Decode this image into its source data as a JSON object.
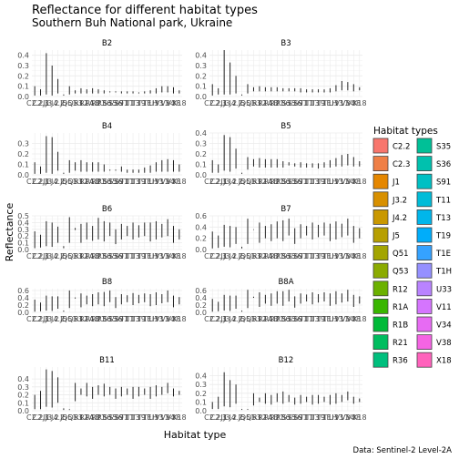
{
  "chart_data": {
    "type": "boxplot",
    "title": "Reflectance for different habitat types",
    "subtitle": "Southern Buh National park, Ukraine",
    "xlabel": "Habitat type",
    "ylabel": "Reflectance",
    "caption": "Data: Sentinel-2 Level-2A",
    "legend": {
      "title": "Habitat types",
      "position": "right",
      "columns": 2
    },
    "grid": true,
    "categories": [
      "C2.2",
      "C2.3",
      "J1",
      "J3.2",
      "J4.2",
      "J5",
      "Q51",
      "Q53",
      "R12",
      "R1A",
      "R1B",
      "R21",
      "R36",
      "S35",
      "S36",
      "S91",
      "T11",
      "T13",
      "T19",
      "T1E",
      "T1H",
      "U33",
      "V11",
      "V34",
      "V38",
      "X18"
    ],
    "colors": [
      "#F8766D",
      "#EF7F46",
      "#E58700",
      "#D89000",
      "#C99800",
      "#B79F00",
      "#A3A500",
      "#8BAB00",
      "#6BB100",
      "#39B600",
      "#00BA38",
      "#00BD5F",
      "#00BF7D",
      "#00C097",
      "#00C1AE",
      "#00C0C4",
      "#00BCD8",
      "#00B6EB",
      "#00ADFA",
      "#35A2FF",
      "#9590FF",
      "#B983FF",
      "#D575FE",
      "#E76BF3",
      "#F564E3",
      "#FF62BC"
    ],
    "panels": [
      {
        "band": "B2",
        "ylim": [
          0,
          0.45
        ],
        "yticks": [
          0.0,
          0.1,
          0.2,
          0.3,
          0.4
        ],
        "ranges": [
          [
            0.01,
            0.1
          ],
          [
            0.01,
            0.07
          ],
          [
            0.02,
            0.42
          ],
          [
            0.01,
            0.3
          ],
          [
            0.03,
            0.17
          ],
          [
            0.01,
            0.02
          ],
          [
            0.02,
            0.1
          ],
          [
            0.03,
            0.06
          ],
          [
            0.03,
            0.08
          ],
          [
            0.03,
            0.07
          ],
          [
            0.03,
            0.08
          ],
          [
            0.03,
            0.07
          ],
          [
            0.03,
            0.06
          ],
          [
            0.04,
            0.05
          ],
          [
            0.04,
            0.05
          ],
          [
            0.03,
            0.05
          ],
          [
            0.03,
            0.05
          ],
          [
            0.03,
            0.05
          ],
          [
            0.03,
            0.04
          ],
          [
            0.03,
            0.05
          ],
          [
            0.03,
            0.06
          ],
          [
            0.03,
            0.08
          ],
          [
            0.04,
            0.1
          ],
          [
            0.04,
            0.1
          ],
          [
            0.03,
            0.09
          ],
          [
            0.03,
            0.06
          ]
        ]
      },
      {
        "band": "B3",
        "ylim": [
          0,
          0.45
        ],
        "yticks": [
          0.0,
          0.1,
          0.2,
          0.3,
          0.4
        ],
        "ranges": [
          [
            0.01,
            0.12
          ],
          [
            0.02,
            0.08
          ],
          [
            0.02,
            0.45
          ],
          [
            0.02,
            0.33
          ],
          [
            0.03,
            0.2
          ],
          [
            0.01,
            0.02
          ],
          [
            0.03,
            0.12
          ],
          [
            0.05,
            0.09
          ],
          [
            0.05,
            0.1
          ],
          [
            0.05,
            0.09
          ],
          [
            0.05,
            0.09
          ],
          [
            0.05,
            0.09
          ],
          [
            0.05,
            0.08
          ],
          [
            0.05,
            0.08
          ],
          [
            0.05,
            0.08
          ],
          [
            0.04,
            0.08
          ],
          [
            0.04,
            0.07
          ],
          [
            0.04,
            0.07
          ],
          [
            0.04,
            0.07
          ],
          [
            0.04,
            0.07
          ],
          [
            0.04,
            0.08
          ],
          [
            0.05,
            0.11
          ],
          [
            0.06,
            0.15
          ],
          [
            0.06,
            0.14
          ],
          [
            0.05,
            0.12
          ],
          [
            0.06,
            0.09
          ]
        ]
      },
      {
        "band": "B4",
        "ylim": [
          0,
          0.4
        ],
        "yticks": [
          0.0,
          0.1,
          0.2,
          0.3
        ],
        "ranges": [
          [
            0.01,
            0.12
          ],
          [
            0.01,
            0.08
          ],
          [
            0.02,
            0.37
          ],
          [
            0.01,
            0.36
          ],
          [
            0.04,
            0.22
          ],
          [
            0.01,
            0.02
          ],
          [
            0.02,
            0.14
          ],
          [
            0.04,
            0.12
          ],
          [
            0.03,
            0.14
          ],
          [
            0.03,
            0.12
          ],
          [
            0.03,
            0.12
          ],
          [
            0.03,
            0.12
          ],
          [
            0.03,
            0.1
          ],
          [
            0.04,
            0.05
          ],
          [
            0.04,
            0.05
          ],
          [
            0.03,
            0.08
          ],
          [
            0.02,
            0.05
          ],
          [
            0.02,
            0.05
          ],
          [
            0.02,
            0.05
          ],
          [
            0.02,
            0.07
          ],
          [
            0.02,
            0.09
          ],
          [
            0.03,
            0.12
          ],
          [
            0.03,
            0.14
          ],
          [
            0.03,
            0.15
          ],
          [
            0.03,
            0.14
          ],
          [
            0.03,
            0.1
          ]
        ]
      },
      {
        "band": "B5",
        "ylim": [
          0,
          0.4
        ],
        "yticks": [
          0.0,
          0.1,
          0.2,
          0.3,
          0.4
        ],
        "ranges": [
          [
            0.02,
            0.14
          ],
          [
            0.02,
            0.1
          ],
          [
            0.04,
            0.38
          ],
          [
            0.03,
            0.36
          ],
          [
            0.06,
            0.25
          ],
          [
            0.01,
            0.02
          ],
          [
            0.05,
            0.17
          ],
          [
            0.08,
            0.15
          ],
          [
            0.07,
            0.16
          ],
          [
            0.07,
            0.15
          ],
          [
            0.07,
            0.15
          ],
          [
            0.07,
            0.15
          ],
          [
            0.07,
            0.13
          ],
          [
            0.09,
            0.12
          ],
          [
            0.08,
            0.11
          ],
          [
            0.07,
            0.12
          ],
          [
            0.07,
            0.11
          ],
          [
            0.07,
            0.11
          ],
          [
            0.06,
            0.11
          ],
          [
            0.07,
            0.12
          ],
          [
            0.07,
            0.14
          ],
          [
            0.08,
            0.16
          ],
          [
            0.08,
            0.19
          ],
          [
            0.09,
            0.2
          ],
          [
            0.08,
            0.17
          ],
          [
            0.08,
            0.13
          ]
        ]
      },
      {
        "band": "B6",
        "ylim": [
          0,
          0.5
        ],
        "yticks": [
          0.0,
          0.1,
          0.2,
          0.3,
          0.4,
          0.5
        ],
        "ranges": [
          [
            0.02,
            0.27
          ],
          [
            0.03,
            0.22
          ],
          [
            0.05,
            0.42
          ],
          [
            0.04,
            0.4
          ],
          [
            0.1,
            0.34
          ],
          [
            0.02,
            0.05
          ],
          [
            0.1,
            0.48
          ],
          [
            0.29,
            0.32
          ],
          [
            0.1,
            0.38
          ],
          [
            0.15,
            0.4
          ],
          [
            0.13,
            0.35
          ],
          [
            0.15,
            0.47
          ],
          [
            0.12,
            0.42
          ],
          [
            0.2,
            0.4
          ],
          [
            0.08,
            0.3
          ],
          [
            0.15,
            0.38
          ],
          [
            0.2,
            0.35
          ],
          [
            0.15,
            0.4
          ],
          [
            0.18,
            0.36
          ],
          [
            0.2,
            0.4
          ],
          [
            0.12,
            0.4
          ],
          [
            0.15,
            0.42
          ],
          [
            0.18,
            0.38
          ],
          [
            0.2,
            0.45
          ],
          [
            0.1,
            0.35
          ],
          [
            0.15,
            0.3
          ]
        ]
      },
      {
        "band": "B7",
        "ylim": [
          0,
          0.6
        ],
        "yticks": [
          0.0,
          0.2,
          0.4,
          0.6
        ],
        "ranges": [
          [
            0.02,
            0.32
          ],
          [
            0.03,
            0.25
          ],
          [
            0.05,
            0.44
          ],
          [
            0.04,
            0.42
          ],
          [
            0.1,
            0.4
          ],
          [
            0.02,
            0.05
          ],
          [
            0.1,
            0.55
          ],
          [
            0.35,
            0.36
          ],
          [
            0.12,
            0.48
          ],
          [
            0.2,
            0.42
          ],
          [
            0.15,
            0.45
          ],
          [
            0.2,
            0.5
          ],
          [
            0.15,
            0.52
          ],
          [
            0.25,
            0.55
          ],
          [
            0.1,
            0.38
          ],
          [
            0.2,
            0.45
          ],
          [
            0.25,
            0.42
          ],
          [
            0.18,
            0.48
          ],
          [
            0.22,
            0.44
          ],
          [
            0.25,
            0.48
          ],
          [
            0.15,
            0.46
          ],
          [
            0.18,
            0.5
          ],
          [
            0.22,
            0.46
          ],
          [
            0.25,
            0.55
          ],
          [
            0.12,
            0.42
          ],
          [
            0.2,
            0.38
          ]
        ]
      },
      {
        "band": "B8",
        "ylim": [
          0,
          0.65
        ],
        "yticks": [
          0.0,
          0.2,
          0.4,
          0.6
        ],
        "ranges": [
          [
            0.02,
            0.35
          ],
          [
            0.03,
            0.27
          ],
          [
            0.05,
            0.46
          ],
          [
            0.04,
            0.44
          ],
          [
            0.1,
            0.44
          ],
          [
            0.02,
            0.05
          ],
          [
            0.12,
            0.6
          ],
          [
            0.38,
            0.41
          ],
          [
            0.14,
            0.52
          ],
          [
            0.22,
            0.46
          ],
          [
            0.17,
            0.5
          ],
          [
            0.22,
            0.55
          ],
          [
            0.17,
            0.56
          ],
          [
            0.28,
            0.6
          ],
          [
            0.12,
            0.42
          ],
          [
            0.22,
            0.5
          ],
          [
            0.28,
            0.47
          ],
          [
            0.2,
            0.53
          ],
          [
            0.25,
            0.48
          ],
          [
            0.28,
            0.52
          ],
          [
            0.17,
            0.5
          ],
          [
            0.2,
            0.55
          ],
          [
            0.25,
            0.5
          ],
          [
            0.28,
            0.6
          ],
          [
            0.14,
            0.46
          ],
          [
            0.22,
            0.42
          ]
        ]
      },
      {
        "band": "B8A",
        "ylim": [
          0,
          0.65
        ],
        "yticks": [
          0.0,
          0.2,
          0.4,
          0.6
        ],
        "ranges": [
          [
            0.02,
            0.37
          ],
          [
            0.03,
            0.29
          ],
          [
            0.05,
            0.48
          ],
          [
            0.04,
            0.46
          ],
          [
            0.1,
            0.46
          ],
          [
            0.02,
            0.05
          ],
          [
            0.12,
            0.62
          ],
          [
            0.4,
            0.43
          ],
          [
            0.15,
            0.55
          ],
          [
            0.24,
            0.48
          ],
          [
            0.18,
            0.52
          ],
          [
            0.24,
            0.58
          ],
          [
            0.18,
            0.58
          ],
          [
            0.3,
            0.62
          ],
          [
            0.13,
            0.44
          ],
          [
            0.24,
            0.52
          ],
          [
            0.3,
            0.49
          ],
          [
            0.22,
            0.55
          ],
          [
            0.27,
            0.5
          ],
          [
            0.3,
            0.55
          ],
          [
            0.18,
            0.52
          ],
          [
            0.22,
            0.58
          ],
          [
            0.27,
            0.52
          ],
          [
            0.3,
            0.62
          ],
          [
            0.15,
            0.48
          ],
          [
            0.24,
            0.44
          ]
        ]
      },
      {
        "band": "B11",
        "ylim": [
          0,
          0.55
        ],
        "yticks": [
          0.0,
          0.1,
          0.2,
          0.3,
          0.4
        ],
        "ranges": [
          [
            0.02,
            0.2
          ],
          [
            0.02,
            0.25
          ],
          [
            0.05,
            0.52
          ],
          [
            0.04,
            0.5
          ],
          [
            0.1,
            0.42
          ],
          [
            0.01,
            0.03
          ],
          [
            0.01,
            0.02
          ],
          [
            0.12,
            0.35
          ],
          [
            0.2,
            0.28
          ],
          [
            0.18,
            0.35
          ],
          [
            0.15,
            0.3
          ],
          [
            0.2,
            0.32
          ],
          [
            0.18,
            0.34
          ],
          [
            0.2,
            0.3
          ],
          [
            0.15,
            0.28
          ],
          [
            0.18,
            0.3
          ],
          [
            0.2,
            0.28
          ],
          [
            0.15,
            0.3
          ],
          [
            0.18,
            0.3
          ],
          [
            0.2,
            0.28
          ],
          [
            0.15,
            0.3
          ],
          [
            0.18,
            0.32
          ],
          [
            0.2,
            0.3
          ],
          [
            0.22,
            0.35
          ],
          [
            0.18,
            0.28
          ],
          [
            0.2,
            0.25
          ]
        ]
      },
      {
        "band": "B12",
        "ylim": [
          0,
          0.5
        ],
        "yticks": [
          0.0,
          0.1,
          0.2,
          0.3,
          0.4
        ],
        "ranges": [
          [
            0.02,
            0.1
          ],
          [
            0.02,
            0.16
          ],
          [
            0.05,
            0.44
          ],
          [
            0.04,
            0.35
          ],
          [
            0.08,
            0.3
          ],
          [
            0.01,
            0.02
          ],
          [
            0.01,
            0.02
          ],
          [
            0.06,
            0.2
          ],
          [
            0.1,
            0.15
          ],
          [
            0.08,
            0.2
          ],
          [
            0.07,
            0.18
          ],
          [
            0.1,
            0.2
          ],
          [
            0.08,
            0.22
          ],
          [
            0.1,
            0.18
          ],
          [
            0.07,
            0.15
          ],
          [
            0.08,
            0.18
          ],
          [
            0.1,
            0.16
          ],
          [
            0.07,
            0.18
          ],
          [
            0.08,
            0.18
          ],
          [
            0.1,
            0.16
          ],
          [
            0.07,
            0.18
          ],
          [
            0.08,
            0.2
          ],
          [
            0.1,
            0.18
          ],
          [
            0.12,
            0.22
          ],
          [
            0.08,
            0.16
          ],
          [
            0.1,
            0.14
          ]
        ]
      }
    ]
  }
}
